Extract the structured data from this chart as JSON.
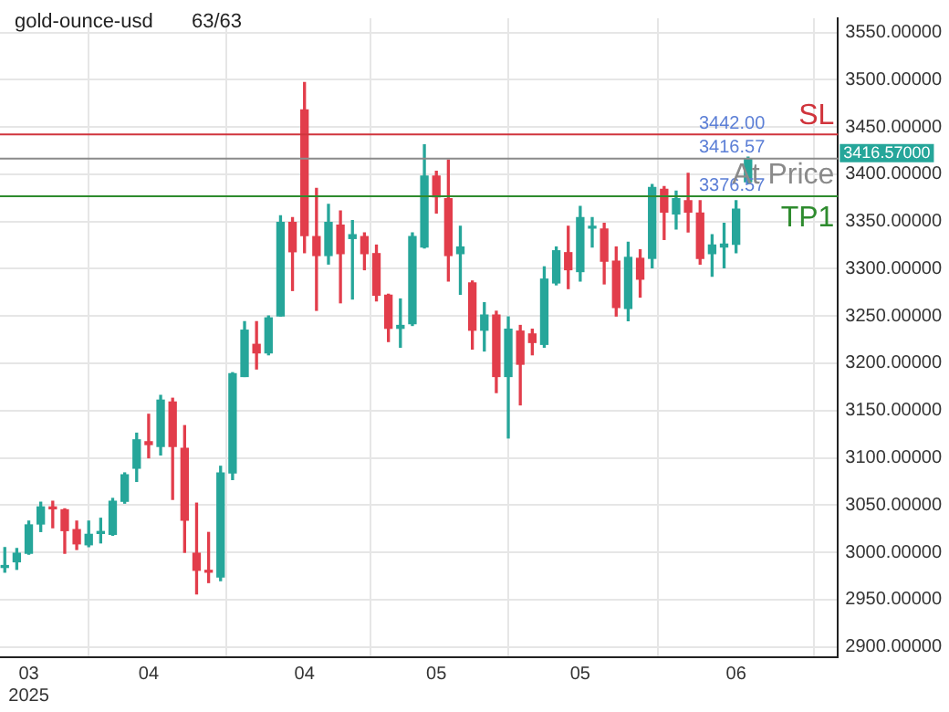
{
  "chart_data": {
    "type": "candlestick",
    "title": "gold-ounce-usd",
    "subtitle": "63/63",
    "categories": [
      null,
      null,
      "03\n2025",
      null,
      null,
      null,
      null,
      null,
      null,
      null,
      null,
      null,
      "04",
      null,
      null,
      null,
      null,
      null,
      null,
      null,
      null,
      null,
      null,
      null,
      null,
      "04",
      null,
      null,
      null,
      null,
      null,
      null,
      null,
      null,
      null,
      null,
      "05",
      null,
      null,
      null,
      null,
      null,
      null,
      null,
      null,
      null,
      null,
      null,
      "05",
      null,
      null,
      null,
      null,
      null,
      null,
      null,
      null,
      null,
      null,
      null,
      null,
      "06",
      null
    ],
    "ohlc": [
      [
        2984,
        3005,
        2979,
        2986
      ],
      [
        2990,
        3004,
        2982,
        2999
      ],
      [
        2999,
        3033,
        2998,
        3029
      ],
      [
        3030,
        3053,
        3022,
        3048
      ],
      [
        3048,
        3054,
        3026,
        3046
      ],
      [
        3045,
        3046,
        2999,
        3023
      ],
      [
        3024,
        3033,
        3003,
        3009
      ],
      [
        3008,
        3033,
        3006,
        3019
      ],
      [
        3020,
        3036,
        3010,
        3022
      ],
      [
        3019,
        3057,
        3018,
        3054
      ],
      [
        3054,
        3084,
        3052,
        3082
      ],
      [
        3089,
        3126,
        3075,
        3119
      ],
      [
        3117,
        3146,
        3100,
        3114
      ],
      [
        3112,
        3166,
        3103,
        3161
      ],
      [
        3159,
        3163,
        3056,
        3112
      ],
      [
        3110,
        3134,
        3000,
        3034
      ],
      [
        2999,
        3052,
        2956,
        2981
      ],
      [
        2980,
        3021,
        2968,
        2979
      ],
      [
        2974,
        3091,
        2970,
        3084
      ],
      [
        3084,
        3190,
        3077,
        3189
      ],
      [
        3186,
        3244,
        3186,
        3235
      ],
      [
        3220,
        3244,
        3194,
        3211
      ],
      [
        3211,
        3250,
        3209,
        3248
      ],
      [
        3250,
        3356,
        3250,
        3349
      ],
      [
        3349,
        3354,
        3277,
        3318
      ],
      [
        3468,
        3497,
        3317,
        3335
      ],
      [
        3334,
        3385,
        3256,
        3314
      ],
      [
        3314,
        3368,
        3305,
        3349
      ],
      [
        3346,
        3361,
        3264,
        3316
      ],
      [
        3332,
        3351,
        3268,
        3336
      ],
      [
        3334,
        3338,
        3299,
        3316
      ],
      [
        3316,
        3325,
        3266,
        3272
      ],
      [
        3272,
        3273,
        3223,
        3237
      ],
      [
        3237,
        3268,
        3217,
        3240
      ],
      [
        3242,
        3338,
        3240,
        3334
      ],
      [
        3323,
        3431,
        3322,
        3398
      ],
      [
        3398,
        3403,
        3359,
        3376
      ],
      [
        3374,
        3415,
        3287,
        3314
      ],
      [
        3316,
        3345,
        3273,
        3323
      ],
      [
        3285,
        3287,
        3215,
        3235
      ],
      [
        3235,
        3264,
        3213,
        3251
      ],
      [
        3251,
        3255,
        3169,
        3186
      ],
      [
        3186,
        3249,
        3121,
        3236
      ],
      [
        3234,
        3240,
        3156,
        3199
      ],
      [
        3231,
        3236,
        3209,
        3222
      ],
      [
        3220,
        3302,
        3217,
        3289
      ],
      [
        3285,
        3323,
        3283,
        3319
      ],
      [
        3317,
        3345,
        3279,
        3299
      ],
      [
        3297,
        3366,
        3287,
        3354
      ],
      [
        3343,
        3354,
        3323,
        3345
      ],
      [
        3342,
        3348,
        3284,
        3308
      ],
      [
        3308,
        3323,
        3250,
        3259
      ],
      [
        3258,
        3328,
        3245,
        3312
      ],
      [
        3311,
        3320,
        3270,
        3289
      ],
      [
        3311,
        3389,
        3301,
        3386
      ],
      [
        3384,
        3387,
        3331,
        3360
      ],
      [
        3358,
        3382,
        3342,
        3374
      ],
      [
        3372,
        3401,
        3339,
        3360
      ],
      [
        3359,
        3372,
        3305,
        3311
      ],
      [
        3316,
        3336,
        3292,
        3325
      ],
      [
        3323,
        3348,
        3301,
        3326
      ],
      [
        3326,
        3372,
        3317,
        3363
      ],
      [
        3392,
        3418,
        3390,
        3416.57
      ]
    ],
    "colors": [
      "#26a69a",
      "#26a69a",
      "#26a69a",
      "#26a69a",
      "#e23d4b",
      "#e23d4b",
      "#e23d4b",
      "#26a69a",
      "#26a69a",
      "#26a69a",
      "#26a69a",
      "#26a69a",
      "#e23d4b",
      "#26a69a",
      "#e23d4b",
      "#e23d4b",
      "#e23d4b",
      "#e23d4b",
      "#26a69a",
      "#26a69a",
      "#26a69a",
      "#e23d4b",
      "#26a69a",
      "#26a69a",
      "#e23d4b",
      "#e23d4b",
      "#e23d4b",
      "#26a69a",
      "#e23d4b",
      "#26a69a",
      "#e23d4b",
      "#e23d4b",
      "#e23d4b",
      "#26a69a",
      "#26a69a",
      "#26a69a",
      "#e23d4b",
      "#e23d4b",
      "#26a69a",
      "#e23d4b",
      "#26a69a",
      "#e23d4b",
      "#26a69a",
      "#e23d4b",
      "#e23d4b",
      "#26a69a",
      "#26a69a",
      "#e23d4b",
      "#26a69a",
      "#26a69a",
      "#e23d4b",
      "#e23d4b",
      "#26a69a",
      "#e23d4b",
      "#26a69a",
      "#e23d4b",
      "#26a69a",
      "#e23d4b",
      "#e23d4b",
      "#26a69a",
      "#26a69a",
      "#26a69a",
      "#26a69a"
    ],
    "ylim": [
      2889,
      3565
    ],
    "yticks": [
      {
        "value": 2900,
        "label": "2900.00000"
      },
      {
        "value": 2950,
        "label": "2950.00000"
      },
      {
        "value": 3000,
        "label": "3000.00000"
      },
      {
        "value": 3050,
        "label": "3050.00000"
      },
      {
        "value": 3100,
        "label": "3100.00000"
      },
      {
        "value": 3150,
        "label": "3150.00000"
      },
      {
        "value": 3200,
        "label": "3200.00000"
      },
      {
        "value": 3250,
        "label": "3250.00000"
      },
      {
        "value": 3300,
        "label": "3300.00000"
      },
      {
        "value": 3350,
        "label": "3350.00000"
      },
      {
        "value": 3400,
        "label": "3400.00000"
      },
      {
        "value": 3450,
        "label": "3450.00000"
      },
      {
        "value": 3500,
        "label": "3500.00000"
      },
      {
        "value": 3550,
        "label": "3550.00000"
      }
    ],
    "grid": true,
    "ref_lines": [
      {
        "axis": "y",
        "value": 3442,
        "label": "SL",
        "color": "#d0343c"
      },
      {
        "axis": "y",
        "value": 3416.57,
        "label": "At Price",
        "color": "#8a8a8a"
      },
      {
        "axis": "y",
        "value": 3376.57,
        "label": "TP1",
        "color": "#2e8b2e"
      }
    ],
    "annotations": [
      {
        "text": "3442.00",
        "y": 3442
      },
      {
        "text": "3416.57",
        "y": 3416.57
      },
      {
        "text": "3376.57",
        "y": 3376.57
      },
      "3416.57000"
    ]
  }
}
